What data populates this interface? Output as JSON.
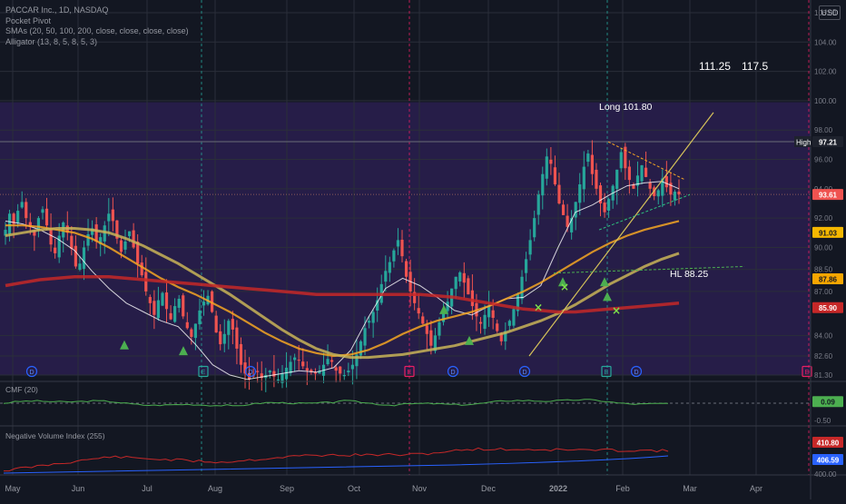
{
  "legend": {
    "symbol": "PACCAR Inc., 1D, NASDAQ",
    "indicator_1": "Pocket Pivot",
    "indicator_2": "SMAs (20, 50, 100, 200, close, close, close, close)",
    "indicator_3": "Alligator (13, 8, 5, 8, 5, 3)"
  },
  "currency_button": "USD",
  "annotations": {
    "target_1": "111.25",
    "target_2": "117.5",
    "long_label": "Long 101.80",
    "hl_label": "HL 88.25",
    "high_tag": "High"
  },
  "price_tags": [
    {
      "value": "97.21",
      "bg": "#1e222d",
      "fg": "#ffffff",
      "level": 97.21
    },
    {
      "value": "93.61",
      "bg": "#ef5350",
      "fg": "#ffffff",
      "level": 93.61
    },
    {
      "value": "91.03",
      "bg": "#f5b800",
      "fg": "#131722",
      "level": 91.03
    },
    {
      "value": "87.86",
      "bg": "#f7a600",
      "fg": "#131722",
      "level": 87.86
    },
    {
      "value": "85.90",
      "bg": "#c62828",
      "fg": "#ffffff",
      "level": 85.9
    }
  ],
  "cmf": {
    "label": "CMF (20)",
    "value": "0.09",
    "value_bg": "#4caf50",
    "ticks": [
      "0.00",
      "-0.50"
    ]
  },
  "nvi": {
    "label": "Negative Volume Index (255)",
    "value_1": "410.80",
    "value_1_bg": "#c62828",
    "value_2": "406.59",
    "value_2_bg": "#2962ff",
    "ticks": [
      "400.00"
    ]
  },
  "event_markers": {
    "dividend": "D",
    "earnings": "E"
  },
  "colors": {
    "up": "#26a69a",
    "down": "#ef5350",
    "sma20": "#ffffff",
    "sma50": "#f5a623",
    "sma100": "#c9b458",
    "sma200": "#c62828",
    "zone": "#2a1f4f"
  },
  "chart_data": {
    "type": "candlestick",
    "title": "PACCAR Inc., 1D, NASDAQ",
    "x_ticks": [
      "May",
      "Jun",
      "Jul",
      "Aug",
      "Sep",
      "Oct",
      "Nov",
      "Dec",
      "2022",
      "Feb",
      "Mar",
      "Apr"
    ],
    "y_ticks": [
      106,
      104,
      102,
      100,
      98,
      96,
      94,
      92,
      90,
      88.5,
      87,
      84,
      82.6,
      81.3
    ],
    "y_tick_labels": [
      "106.00",
      "104.00",
      "102.00",
      "100.00",
      "98.00",
      "96.00",
      "94.00",
      "92.00",
      "90.00",
      "88.50",
      "87.00",
      "84.00",
      "82.60",
      "81.30"
    ],
    "ylim": [
      81.0,
      107.0
    ],
    "closes": [
      91.2,
      92.3,
      91.6,
      92.5,
      93.1,
      92.0,
      91.4,
      90.8,
      92.0,
      92.6,
      91.5,
      90.2,
      89.6,
      90.8,
      91.7,
      91.0,
      89.9,
      88.7,
      88.9,
      90.0,
      90.9,
      91.3,
      90.4,
      90.7,
      91.5,
      92.3,
      91.8,
      90.6,
      89.7,
      90.4,
      91.1,
      90.0,
      88.9,
      88.1,
      87.0,
      86.2,
      85.4,
      86.4,
      86.9,
      85.8,
      85.1,
      86.0,
      86.5,
      85.3,
      84.5,
      83.9,
      84.8,
      85.7,
      86.3,
      86.7,
      85.6,
      84.2,
      83.4,
      84.1,
      85.0,
      84.4,
      83.1,
      82.0,
      81.4,
      81.0,
      81.2,
      81.5,
      81.1,
      81.3,
      81.6,
      81.2,
      81.0,
      81.4,
      81.8,
      82.2,
      82.5,
      82.3,
      81.9,
      81.6,
      81.5,
      81.4,
      81.6,
      82.0,
      82.4,
      82.2,
      81.6,
      81.4,
      81.3,
      81.6,
      82.0,
      82.7,
      83.6,
      84.5,
      85.0,
      85.6,
      86.4,
      87.5,
      88.4,
      89.0,
      89.8,
      90.5,
      89.4,
      88.0,
      87.0,
      86.2,
      85.5,
      84.8,
      84.1,
      83.3,
      84.0,
      84.9,
      85.6,
      86.3,
      87.2,
      88.0,
      88.3,
      87.6,
      86.8,
      86.0,
      85.3,
      84.8,
      85.4,
      86.0,
      85.2,
      84.3,
      83.6,
      84.3,
      85.0,
      85.8,
      86.8,
      88.0,
      89.2,
      90.5,
      92.0,
      93.6,
      95.0,
      96.2,
      95.7,
      94.3,
      93.0,
      92.2,
      91.4,
      92.0,
      93.1,
      94.3,
      95.5,
      96.4,
      95.0,
      94.0,
      93.0,
      92.4,
      93.3,
      94.2,
      95.3,
      96.5,
      95.4,
      94.6,
      94.0,
      94.9,
      95.6,
      94.8,
      94.0,
      93.5,
      93.9,
      94.7,
      94.1,
      93.6,
      93.8,
      93.61
    ],
    "series": [
      {
        "name": "SMA 20",
        "levels": [
          91.8,
          91.6,
          91.2,
          90.6,
          89.8,
          88.4,
          87.2,
          86.2,
          85.6,
          85.0,
          84.6,
          83.4,
          82.0,
          81.3,
          81.0,
          81.2,
          81.4,
          81.6,
          81.5,
          81.8,
          83.0,
          85.2,
          87.2,
          87.9,
          87.4,
          86.6,
          85.7,
          85.4,
          86.0,
          86.5,
          86.6,
          87.4,
          90.0,
          92.4,
          92.9,
          93.6,
          94.2,
          94.4,
          94.5,
          94.0
        ]
      },
      {
        "name": "SMA 50",
        "levels": [
          91.5,
          91.5,
          91.4,
          91.2,
          91.0,
          90.6,
          90.0,
          89.3,
          88.6,
          87.9,
          87.3,
          86.8,
          86.2,
          85.6,
          84.9,
          84.2,
          83.6,
          83.1,
          82.8,
          82.6,
          82.7,
          83.0,
          83.5,
          84.1,
          84.6,
          85.0,
          85.3,
          85.6,
          86.0,
          86.5,
          87.0,
          87.6,
          88.3,
          89.0,
          89.7,
          90.3,
          90.8,
          91.2,
          91.5,
          91.8
        ]
      },
      {
        "name": "SMA 100",
        "levels": [
          90.8,
          91.0,
          91.2,
          91.3,
          91.3,
          91.2,
          91.0,
          90.6,
          90.1,
          89.5,
          88.9,
          88.2,
          87.5,
          86.8,
          86.0,
          85.2,
          84.4,
          83.7,
          83.1,
          82.7,
          82.5,
          82.5,
          82.6,
          82.7,
          82.9,
          83.1,
          83.3,
          83.6,
          83.9,
          84.2,
          84.6,
          85.0,
          85.5,
          86.1,
          86.8,
          87.5,
          88.1,
          88.7,
          89.2,
          89.6
        ]
      },
      {
        "name": "SMA 200",
        "levels": [
          87.4,
          87.6,
          87.8,
          87.9,
          88.0,
          88.0,
          88.0,
          87.9,
          87.8,
          87.7,
          87.6,
          87.5,
          87.4,
          87.3,
          87.2,
          87.1,
          87.0,
          86.9,
          86.8,
          86.8,
          86.8,
          86.8,
          86.8,
          86.8,
          86.8,
          86.7,
          86.6,
          86.4,
          86.2,
          86.0,
          85.8,
          85.7,
          85.6,
          85.6,
          85.7,
          85.8,
          85.9,
          86.0,
          86.1,
          86.2
        ]
      }
    ],
    "horizontal_levels": [
      97.21,
      93.61,
      88.25
    ],
    "zone": [
      81.3,
      99.9
    ]
  }
}
